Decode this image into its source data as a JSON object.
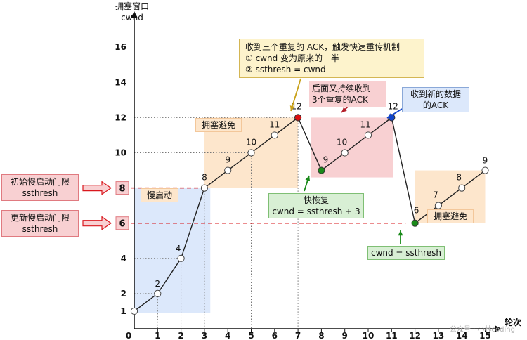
{
  "chart_data": {
    "type": "line",
    "ylabel_line1": "拥塞窗口",
    "ylabel_line2": "cwnd",
    "xlabel": "轮次",
    "x_ticks": [
      0,
      1,
      2,
      3,
      4,
      5,
      6,
      7,
      8,
      9,
      10,
      11,
      12,
      13,
      14,
      15
    ],
    "y_ticks": [
      1,
      2,
      4,
      8,
      10,
      12,
      14,
      16
    ],
    "y_ticks_boxed": [
      8,
      6
    ],
    "points": [
      [
        0,
        1
      ],
      [
        1,
        2
      ],
      [
        2,
        4
      ],
      [
        3,
        8
      ],
      [
        4,
        9
      ],
      [
        5,
        10
      ],
      [
        6,
        11
      ],
      [
        7,
        12
      ],
      [
        8,
        9
      ],
      [
        9,
        10
      ],
      [
        10,
        11
      ],
      [
        11,
        12
      ],
      [
        12,
        6
      ],
      [
        13,
        7
      ],
      [
        14,
        8
      ],
      [
        15,
        9
      ]
    ],
    "point_labels": [
      "1",
      "2",
      "4",
      "8",
      "9",
      "10",
      "11",
      "12",
      "9",
      "10",
      "11",
      "12",
      "6",
      "7",
      "8",
      "9"
    ],
    "highlight_points": [
      {
        "x": 7,
        "y": 12,
        "color": "#dd1111"
      },
      {
        "x": 8,
        "y": 9,
        "color": "#1a8a1a"
      },
      {
        "x": 11,
        "y": 12,
        "color": "#1144cc"
      },
      {
        "x": 12,
        "y": 6,
        "color": "#1a8a1a"
      }
    ],
    "ssthresh_lines": [
      8,
      6
    ],
    "colors": {
      "line": "#222222",
      "slow_start": "#dce8fb",
      "avoid": "#fde6cc",
      "fast_recovery": "#f8d0d2",
      "threshold": "#d9181e"
    }
  },
  "labels": {
    "slow_start": "慢启动",
    "avoid_1": "拥塞避免",
    "avoid_2": "拥塞避免",
    "init_ssthresh_1": "初始慢启动门限",
    "init_ssthresh_2": "ssthresh",
    "update_ssthresh_1": "更新慢启动门限",
    "update_ssthresh_2": "ssthresh",
    "triple_ack_1": "收到三个重复的 ACK，触发快速重传机制",
    "triple_ack_2": "① cwnd 变为原来的一半",
    "triple_ack_3": "② ssthresh = cwnd",
    "more_dup_1": "后面又持续收到",
    "more_dup_2": "3个重复的ACK",
    "new_data_1": "收到新的数据",
    "new_data_2": "的ACK",
    "fast_recovery_1": "快恢复",
    "fast_recovery_2": "cwnd = ssthresh + 3",
    "cwnd_eq": "cwnd = ssthresh",
    "watermark": "公众号 · 小林coding"
  }
}
